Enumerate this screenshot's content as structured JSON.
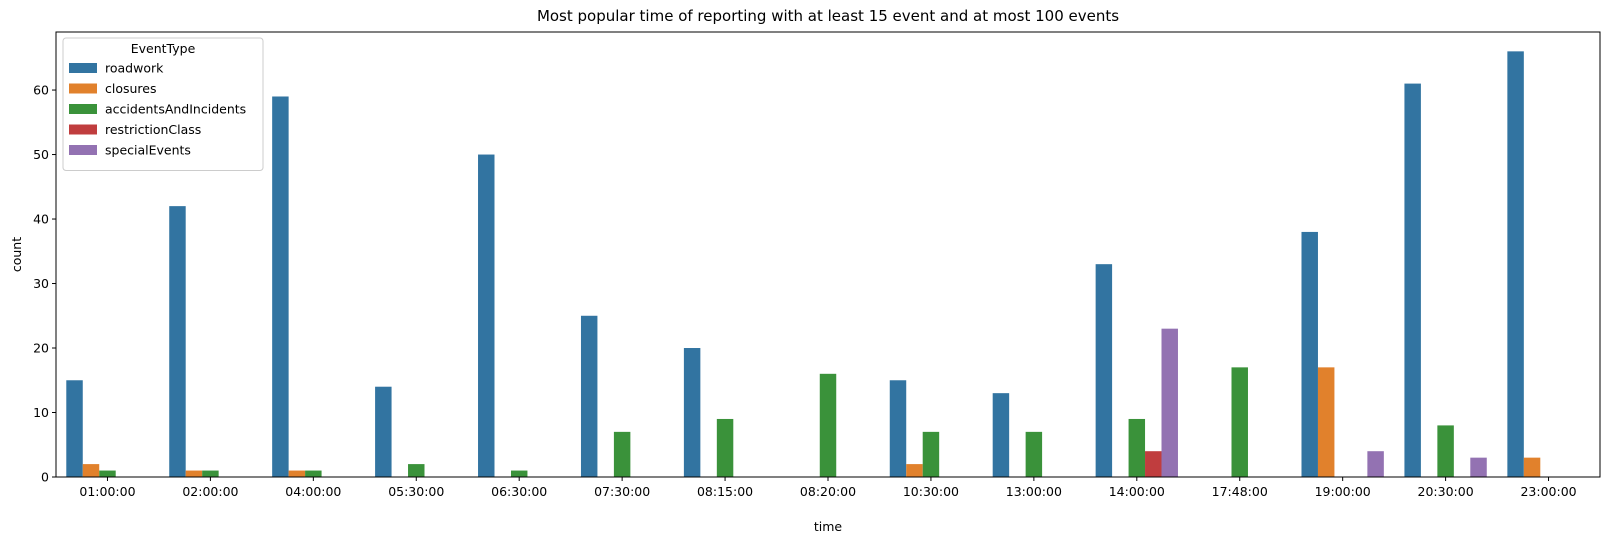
{
  "chart_data": {
    "type": "bar",
    "title": "Most popular time of reporting with at least 15 event and at most 100 events",
    "xlabel": "time",
    "ylabel": "count",
    "ylim": [
      0,
      69
    ],
    "yticks": [
      0,
      10,
      20,
      30,
      40,
      50,
      60
    ],
    "grid": false,
    "legend": {
      "title": "EventType",
      "placement": "top-left"
    },
    "categories": [
      "01:00:00",
      "02:00:00",
      "04:00:00",
      "05:30:00",
      "06:30:00",
      "07:30:00",
      "08:15:00",
      "08:20:00",
      "10:30:00",
      "13:00:00",
      "14:00:00",
      "17:48:00",
      "19:00:00",
      "20:30:00",
      "23:00:00"
    ],
    "series": [
      {
        "name": "roadwork",
        "color": "#3274a1",
        "values": [
          15,
          42,
          59,
          14,
          50,
          25,
          20,
          0,
          15,
          13,
          33,
          0,
          38,
          61,
          66
        ]
      },
      {
        "name": "closures",
        "color": "#e1812c",
        "values": [
          2,
          1,
          1,
          0,
          0,
          0,
          0,
          0,
          2,
          0,
          0,
          0,
          17,
          0,
          3
        ]
      },
      {
        "name": "accidentsAndIncidents",
        "color": "#3a923a",
        "values": [
          1,
          1,
          1,
          2,
          1,
          7,
          9,
          16,
          7,
          7,
          9,
          17,
          0,
          8,
          0
        ]
      },
      {
        "name": "restrictionClass",
        "color": "#c03d3e",
        "values": [
          0,
          0,
          0,
          0,
          0,
          0,
          0,
          0,
          0,
          0,
          4,
          0,
          0,
          0,
          0
        ]
      },
      {
        "name": "specialEvents",
        "color": "#9372b2",
        "values": [
          0,
          0,
          0,
          0,
          0,
          0,
          0,
          0,
          0,
          0,
          23,
          0,
          4,
          3,
          0
        ]
      }
    ]
  }
}
